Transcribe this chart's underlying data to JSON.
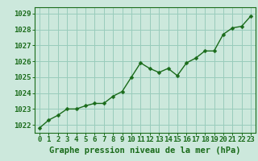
{
  "x": [
    0,
    1,
    2,
    3,
    4,
    5,
    6,
    7,
    8,
    9,
    10,
    11,
    12,
    13,
    14,
    15,
    16,
    17,
    18,
    19,
    20,
    21,
    22,
    23
  ],
  "y": [
    1021.8,
    1022.3,
    1022.6,
    1023.0,
    1023.0,
    1023.2,
    1023.35,
    1023.35,
    1023.8,
    1024.1,
    1025.0,
    1025.9,
    1025.55,
    1025.3,
    1025.55,
    1025.1,
    1025.9,
    1026.2,
    1026.65,
    1026.65,
    1027.7,
    1028.1,
    1028.2,
    1028.85
  ],
  "line_color": "#1a6b1a",
  "marker_color": "#1a6b1a",
  "bg_color": "#cce8dc",
  "grid_color": "#99ccbb",
  "title": "Graphe pression niveau de la mer (hPa)",
  "xlabel_ticks": [
    0,
    1,
    2,
    3,
    4,
    5,
    6,
    7,
    8,
    9,
    10,
    11,
    12,
    13,
    14,
    15,
    16,
    17,
    18,
    19,
    20,
    21,
    22,
    23
  ],
  "yticks": [
    1022,
    1023,
    1024,
    1025,
    1026,
    1027,
    1028,
    1029
  ],
  "ylim": [
    1021.5,
    1029.4
  ],
  "xlim": [
    -0.5,
    23.5
  ],
  "tick_color": "#1a6b1a",
  "label_fontsize": 6.5,
  "title_fontsize": 7.5,
  "marker_size": 2.5,
  "line_width": 1.0
}
